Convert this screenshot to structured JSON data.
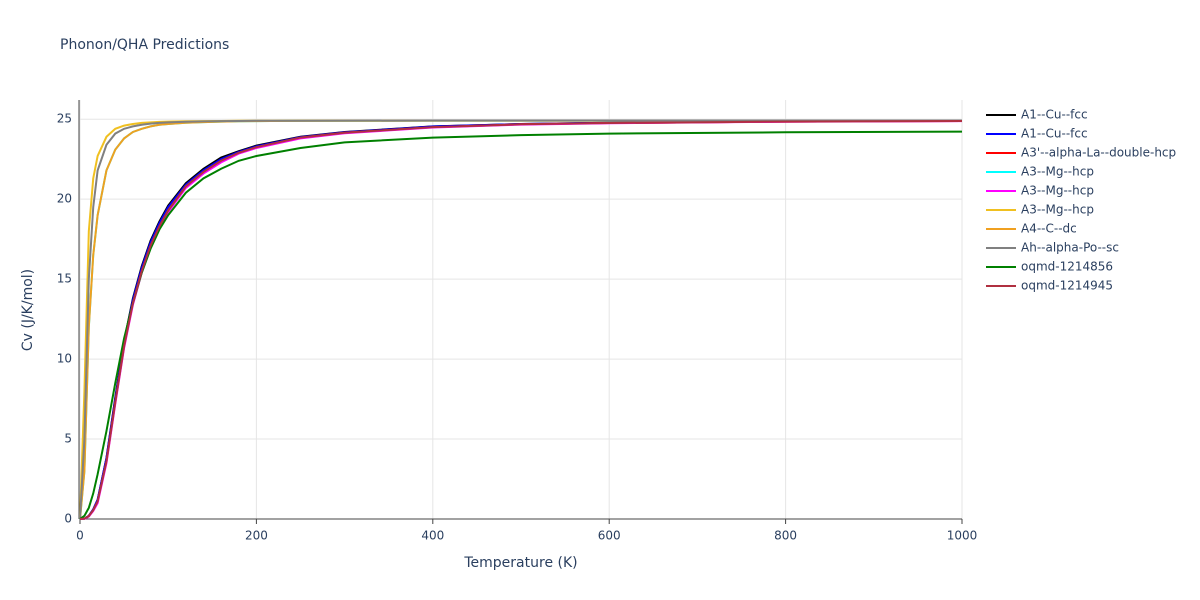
{
  "chart_data": {
    "type": "line",
    "title": "Phonon/QHA Predictions",
    "x_label": "Temperature (K)",
    "y_label": "Cv (J/K/mol)",
    "xlim": [
      0,
      1000
    ],
    "ylim": [
      0,
      26.2
    ],
    "xticks": [
      0,
      200,
      400,
      600,
      800,
      1000
    ],
    "yticks": [
      0,
      5,
      10,
      15,
      20,
      25
    ],
    "grid": true,
    "legend": "right",
    "x": [
      0,
      5,
      10,
      15,
      20,
      30,
      40,
      50,
      60,
      70,
      80,
      90,
      100,
      120,
      140,
      160,
      180,
      200,
      250,
      300,
      400,
      500,
      600,
      800,
      1000
    ],
    "series": [
      {
        "name": "A1--Cu--fcc",
        "color": "#000000",
        "values": [
          0,
          0.02,
          0.2,
          0.6,
          1.2,
          3.8,
          7.6,
          11.1,
          13.8,
          15.8,
          17.4,
          18.6,
          19.6,
          21.0,
          21.9,
          22.6,
          23.0,
          23.35,
          23.9,
          24.2,
          24.55,
          24.7,
          24.78,
          24.86,
          24.9
        ]
      },
      {
        "name": "A1--Cu--fcc",
        "color": "#0000ff",
        "values": [
          0,
          0.02,
          0.2,
          0.6,
          1.2,
          3.8,
          7.5,
          11.0,
          13.7,
          15.7,
          17.3,
          18.5,
          19.5,
          20.9,
          21.8,
          22.5,
          22.95,
          23.3,
          23.88,
          24.18,
          24.54,
          24.7,
          24.78,
          24.86,
          24.9
        ]
      },
      {
        "name": "A3'--alpha-La--double-hcp",
        "color": "#ff0000",
        "values": [
          0,
          0.02,
          0.18,
          0.55,
          1.1,
          3.6,
          7.3,
          10.8,
          13.5,
          15.5,
          17.1,
          18.3,
          19.3,
          20.8,
          21.7,
          22.4,
          22.9,
          23.25,
          23.85,
          24.15,
          24.5,
          24.68,
          24.76,
          24.85,
          24.89
        ]
      },
      {
        "name": "A3--Mg--hcp",
        "color": "#00ffff",
        "values": [
          0,
          3,
          12,
          16.5,
          19,
          21.8,
          23.1,
          23.8,
          24.2,
          24.4,
          24.55,
          24.65,
          24.7,
          24.78,
          24.82,
          24.85,
          24.87,
          24.88,
          24.9,
          24.9,
          24.91,
          24.91,
          24.91,
          24.91,
          24.91
        ]
      },
      {
        "name": "A3--Mg--hcp",
        "color": "#ff00ff",
        "values": [
          0,
          0.01,
          0.15,
          0.5,
          1.0,
          3.5,
          7.2,
          10.7,
          13.4,
          15.4,
          17.0,
          18.2,
          19.2,
          20.7,
          21.6,
          22.3,
          22.85,
          23.2,
          23.8,
          24.12,
          24.48,
          24.66,
          24.75,
          24.84,
          24.88
        ]
      },
      {
        "name": "A3--Mg--hcp",
        "color": "#f0c020",
        "values": [
          0,
          8,
          18,
          21.3,
          22.7,
          23.9,
          24.4,
          24.6,
          24.7,
          24.77,
          24.8,
          24.83,
          24.85,
          24.87,
          24.88,
          24.89,
          24.9,
          24.9,
          24.9,
          24.91,
          24.91,
          24.91,
          24.91,
          24.91,
          24.91
        ]
      },
      {
        "name": "A4--C--dc",
        "color": "#f0a020",
        "values": [
          0,
          3,
          12,
          16.5,
          19,
          21.8,
          23.1,
          23.8,
          24.2,
          24.4,
          24.55,
          24.65,
          24.7,
          24.78,
          24.82,
          24.85,
          24.87,
          24.88,
          24.9,
          24.9,
          24.91,
          24.91,
          24.91,
          24.91,
          24.91
        ]
      },
      {
        "name": "Ah--alpha-Po--sc",
        "color": "#808080",
        "values": [
          0,
          5,
          15,
          19.5,
          21.8,
          23.4,
          24.1,
          24.4,
          24.55,
          24.65,
          24.72,
          24.77,
          24.8,
          24.84,
          24.86,
          24.88,
          24.89,
          24.9,
          24.9,
          24.91,
          24.92,
          24.92,
          24.92,
          24.92,
          24.92
        ]
      },
      {
        "name": "oqmd-1214856",
        "color": "#008000",
        "values": [
          0,
          0.2,
          0.7,
          1.6,
          2.8,
          5.5,
          8.5,
          11.3,
          13.5,
          15.4,
          16.9,
          18.1,
          19.0,
          20.4,
          21.3,
          21.9,
          22.4,
          22.7,
          23.2,
          23.55,
          23.85,
          24.0,
          24.1,
          24.18,
          24.22
        ]
      },
      {
        "name": "oqmd-1214945",
        "color": "#b03040",
        "values": [
          0,
          0.02,
          0.18,
          0.55,
          1.1,
          3.6,
          7.3,
          10.8,
          13.5,
          15.5,
          17.1,
          18.3,
          19.3,
          20.8,
          21.7,
          22.4,
          22.9,
          23.25,
          23.85,
          24.15,
          24.5,
          24.68,
          24.76,
          24.85,
          24.89
        ]
      }
    ]
  }
}
